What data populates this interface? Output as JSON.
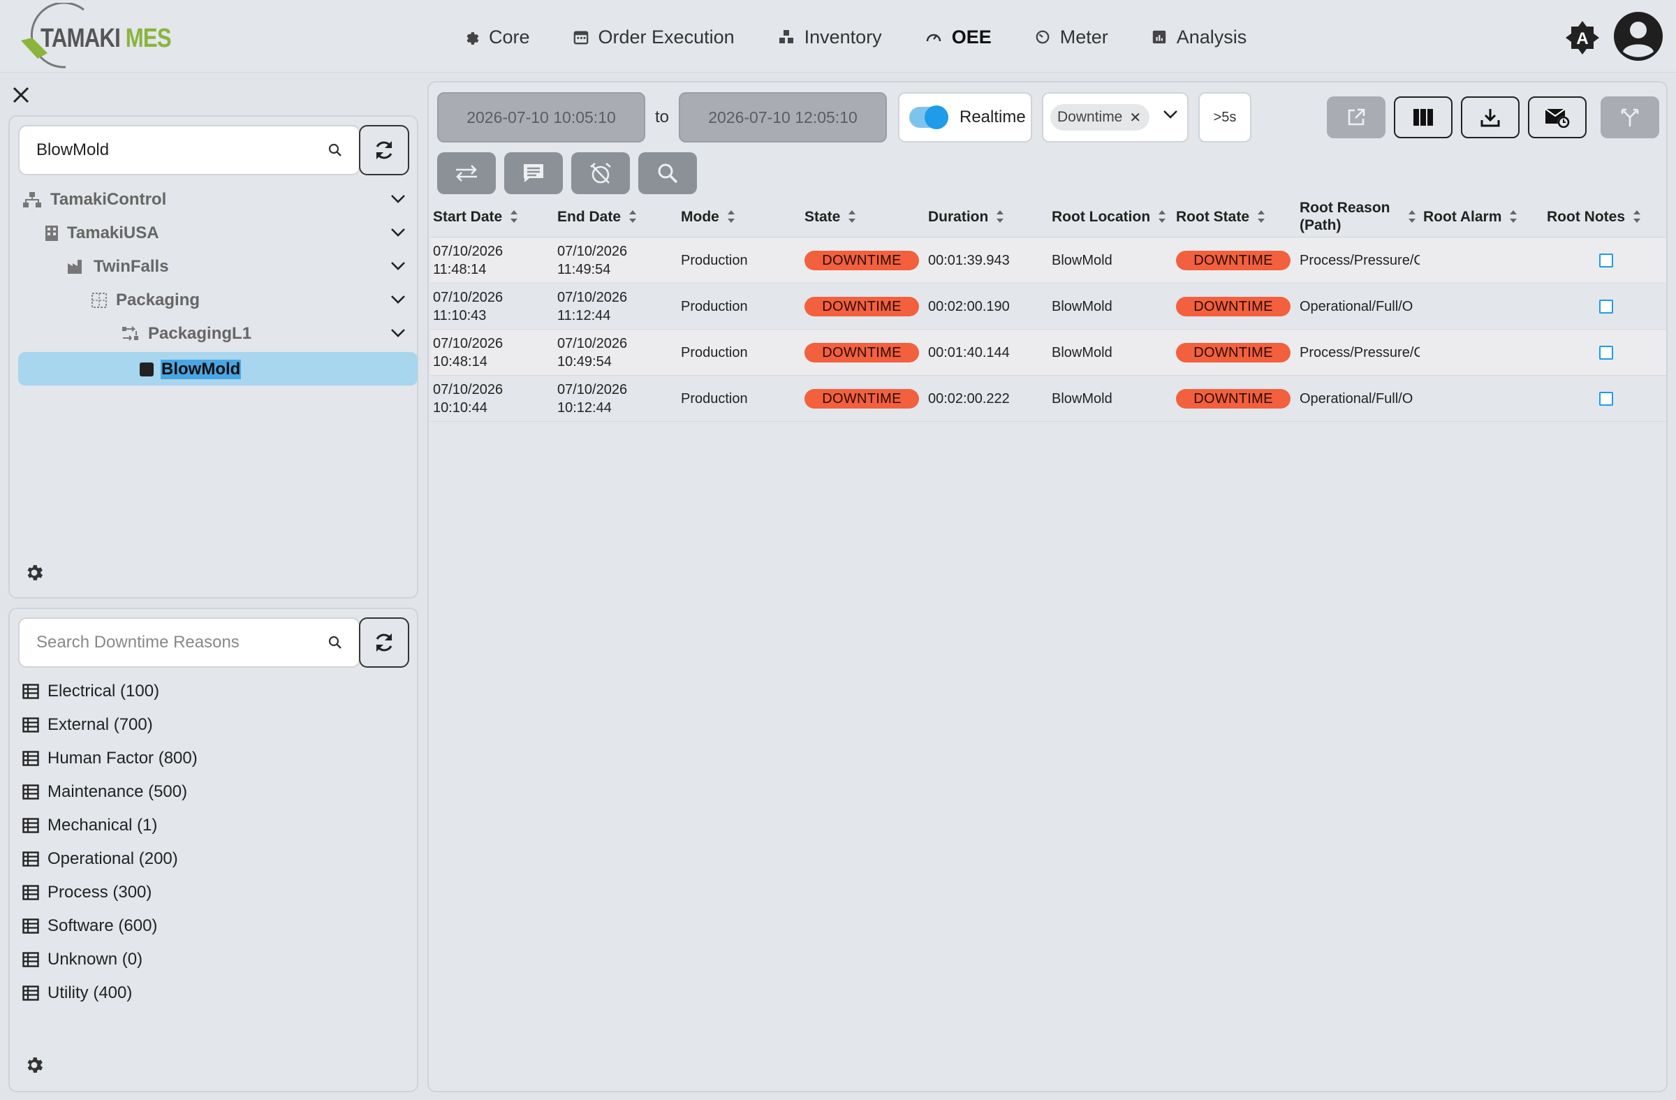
{
  "app": {
    "logo_part1": "TAMAKI",
    "logo_part2": "MES",
    "theme_label": "A"
  },
  "nav": [
    {
      "label": "Core",
      "icon": "gear-icon",
      "active": false
    },
    {
      "label": "Order Execution",
      "icon": "calendar-icon",
      "active": false
    },
    {
      "label": "Inventory",
      "icon": "boxes-icon",
      "active": false
    },
    {
      "label": "OEE",
      "icon": "gauge-icon",
      "active": true
    },
    {
      "label": "Meter",
      "icon": "meter-icon",
      "active": false
    },
    {
      "label": "Analysis",
      "icon": "chart-icon",
      "active": false
    }
  ],
  "tree_panel": {
    "search_value": "BlowMold",
    "items": [
      {
        "label": "TamakiControl",
        "icon": "sitemap-icon"
      },
      {
        "label": "TamakiUSA",
        "icon": "building-icon"
      },
      {
        "label": "TwinFalls",
        "icon": "factory-icon"
      },
      {
        "label": "Packaging",
        "icon": "grid-icon"
      },
      {
        "label": "PackagingL1",
        "icon": "process-line-icon"
      },
      {
        "label": "BlowMold",
        "icon": "square-icon"
      }
    ]
  },
  "reasons_panel": {
    "search_placeholder": "Search Downtime Reasons",
    "items": [
      {
        "label": "Electrical (100)"
      },
      {
        "label": "External (700)"
      },
      {
        "label": "Human Factor (800)"
      },
      {
        "label": "Maintenance (500)"
      },
      {
        "label": "Mechanical (1)"
      },
      {
        "label": "Operational (200)"
      },
      {
        "label": "Process (300)"
      },
      {
        "label": "Software (600)"
      },
      {
        "label": "Unknown (0)"
      },
      {
        "label": "Utility (400)"
      }
    ]
  },
  "filters": {
    "start": "2026-07-10 10:05:10",
    "to_label": "to",
    "end": "2026-07-10 12:05:10",
    "realtime_label": "Realtime",
    "realtime_on": true,
    "state_chip": "Downtime",
    "min_duration": ">5s"
  },
  "toolbar_icons": [
    "external-link-icon",
    "columns-icon",
    "download-icon",
    "email-schedule-icon",
    "split-icon"
  ],
  "action_icons": [
    "swap-icon",
    "comment-icon",
    "alarm-off-icon",
    "search-icon"
  ],
  "table": {
    "columns": [
      "Start Date",
      "End Date",
      "Mode",
      "State",
      "Duration",
      "Root Location",
      "Root State",
      "Root Reason (Path)",
      "Root Alarm",
      "Root Notes"
    ],
    "rows": [
      {
        "start_date": "07/10/2026",
        "start_time": "11:48:14",
        "end_date": "07/10/2026",
        "end_time": "11:49:54",
        "mode": "Production",
        "state": "DOWNTIME",
        "duration": "00:01:39.943",
        "root_location": "BlowMold",
        "root_state": "DOWNTIME",
        "root_reason": "Process/Pressure/C",
        "root_alarm": ""
      },
      {
        "start_date": "07/10/2026",
        "start_time": "11:10:43",
        "end_date": "07/10/2026",
        "end_time": "11:12:44",
        "mode": "Production",
        "state": "DOWNTIME",
        "duration": "00:02:00.190",
        "root_location": "BlowMold",
        "root_state": "DOWNTIME",
        "root_reason": "Operational/Full/O",
        "root_alarm": ""
      },
      {
        "start_date": "07/10/2026",
        "start_time": "10:48:14",
        "end_date": "07/10/2026",
        "end_time": "10:49:54",
        "mode": "Production",
        "state": "DOWNTIME",
        "duration": "00:01:40.144",
        "root_location": "BlowMold",
        "root_state": "DOWNTIME",
        "root_reason": "Process/Pressure/C",
        "root_alarm": ""
      },
      {
        "start_date": "07/10/2026",
        "start_time": "10:10:44",
        "end_date": "07/10/2026",
        "end_time": "10:12:44",
        "mode": "Production",
        "state": "DOWNTIME",
        "duration": "00:02:00.222",
        "root_location": "BlowMold",
        "root_state": "DOWNTIME",
        "root_reason": "Operational/Full/O",
        "root_alarm": ""
      }
    ]
  },
  "colors": {
    "downtime_badge": "#f2603e",
    "accent_blue": "#1e9be9",
    "logo_green": "#8ab43c",
    "selection": "#a8d6ee"
  }
}
